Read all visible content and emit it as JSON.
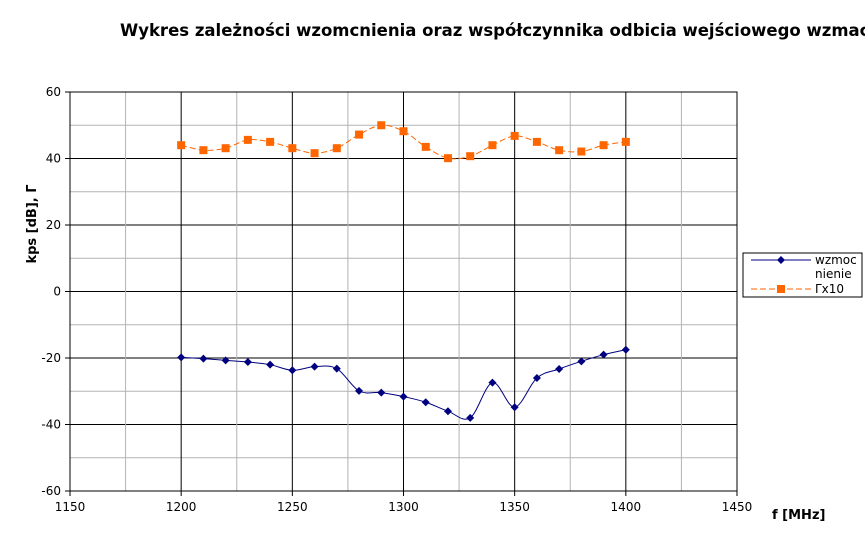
{
  "chart_data": {
    "type": "line",
    "title": "Wykres zależności wzomcnienia oraz współczynnika odbicia wejściowego wzmacniacza",
    "xlabel": "f [MHz]",
    "ylabel": "kps [dB], Γ",
    "xlim": [
      1150,
      1450
    ],
    "ylim": [
      -60,
      60
    ],
    "x_ticks": [
      1150,
      1200,
      1250,
      1300,
      1350,
      1400,
      1450
    ],
    "y_ticks": [
      -60,
      -40,
      -20,
      0,
      20,
      40,
      60
    ],
    "grid": true,
    "legend_position": "right",
    "x": [
      1200,
      1210,
      1220,
      1230,
      1240,
      1250,
      1260,
      1270,
      1280,
      1290,
      1300,
      1310,
      1320,
      1330,
      1340,
      1350,
      1360,
      1370,
      1380,
      1390,
      1400
    ],
    "series": [
      {
        "name": "wzmocnienie",
        "legend_lines": [
          "wzmoc",
          "nienie"
        ],
        "marker": "diamond",
        "color": "#000080",
        "line_style": "solid",
        "values": [
          -19.8,
          -20.2,
          -20.7,
          -21.2,
          -22.0,
          -23.7,
          -22.6,
          -23.2,
          -29.9,
          -30.4,
          -31.6,
          -33.3,
          -36.0,
          -38.0,
          -27.4,
          -34.8,
          -26.0,
          -23.3,
          -21.0,
          -19.0,
          -17.5
        ]
      },
      {
        "name": "Γx10",
        "legend_lines": [
          "Γx10"
        ],
        "marker": "square",
        "color": "#FF6600",
        "line_style": "dashed",
        "values": [
          44.0,
          42.5,
          43.1,
          45.6,
          45.0,
          43.1,
          41.6,
          43.1,
          47.2,
          50.0,
          48.2,
          43.5,
          40.1,
          40.7,
          44.0,
          46.8,
          45.0,
          42.5,
          42.1,
          44.0,
          45.0
        ]
      }
    ]
  }
}
